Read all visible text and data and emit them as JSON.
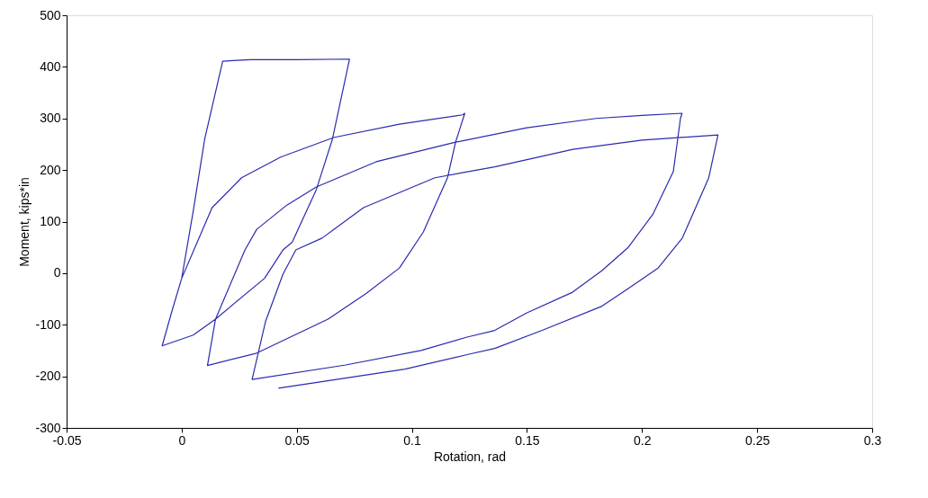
{
  "chart_data": {
    "type": "line",
    "xlabel": "Rotation, rad",
    "ylabel": "Moment, kips*in",
    "xlim": [
      -0.05,
      0.3
    ],
    "xticks": [
      -0.05,
      0,
      0.05,
      0.1,
      0.15,
      0.2,
      0.25,
      0.3
    ],
    "ylim": [
      -300,
      500
    ],
    "yticks": [
      -300,
      -200,
      -100,
      0,
      100,
      200,
      300,
      400,
      500
    ],
    "grid": false,
    "legend": false,
    "marker": "none",
    "line_style": "solid",
    "series": [
      {
        "color": "#2a2ab0",
        "x": [
          0,
          0.005,
          0.01,
          0.0178,
          0.03,
          0.05,
          0.0729,
          0.0655,
          0.0585,
          0.048,
          0.044,
          0.036,
          0.0147,
          0.005,
          -0.0085,
          -0.004,
          0,
          0.0132,
          0.026,
          0.043,
          0.066,
          0.0946,
          0.122,
          0.123,
          0.119,
          0.1155,
          0.105,
          0.0946,
          0.08,
          0.0636,
          0.0326,
          0.0112,
          0.0147,
          0.0275,
          0.0326,
          0.0457,
          0.0585,
          0.0845,
          0.119,
          0.15,
          0.18,
          0.2,
          0.2174,
          0.2167,
          0.2136,
          0.2047,
          0.194,
          0.1826,
          0.1698,
          0.15,
          0.136,
          0.124,
          0.104,
          0.0713,
          0.0306,
          0.0364,
          0.044,
          0.0496,
          0.061,
          0.079,
          0.11,
          0.136,
          0.17,
          0.2,
          0.233,
          0.229,
          0.2175,
          0.207,
          0.194,
          0.1826,
          0.1566,
          0.136,
          0.124,
          0.097,
          0.042
        ],
        "values": [
          -10,
          120,
          260,
          411,
          414,
          414,
          415,
          260,
          162,
          60,
          45,
          -10,
          -89,
          -120,
          -141,
          -70,
          -10,
          127,
          185,
          225,
          263,
          289,
          307,
          310,
          254,
          185,
          80,
          10,
          -40,
          -89,
          -155,
          -179,
          -89,
          45,
          85,
          132,
          167,
          216,
          254,
          282,
          300,
          306,
          310,
          300,
          197,
          114,
          50,
          5,
          -37,
          -77,
          -111,
          -124,
          -150,
          -178,
          -206,
          -94,
          -2,
          45,
          68,
          127,
          185,
          206,
          240,
          258,
          268,
          185,
          68,
          10,
          -30,
          -64,
          -111,
          -146,
          -158,
          -186,
          -223
        ]
      }
    ]
  }
}
